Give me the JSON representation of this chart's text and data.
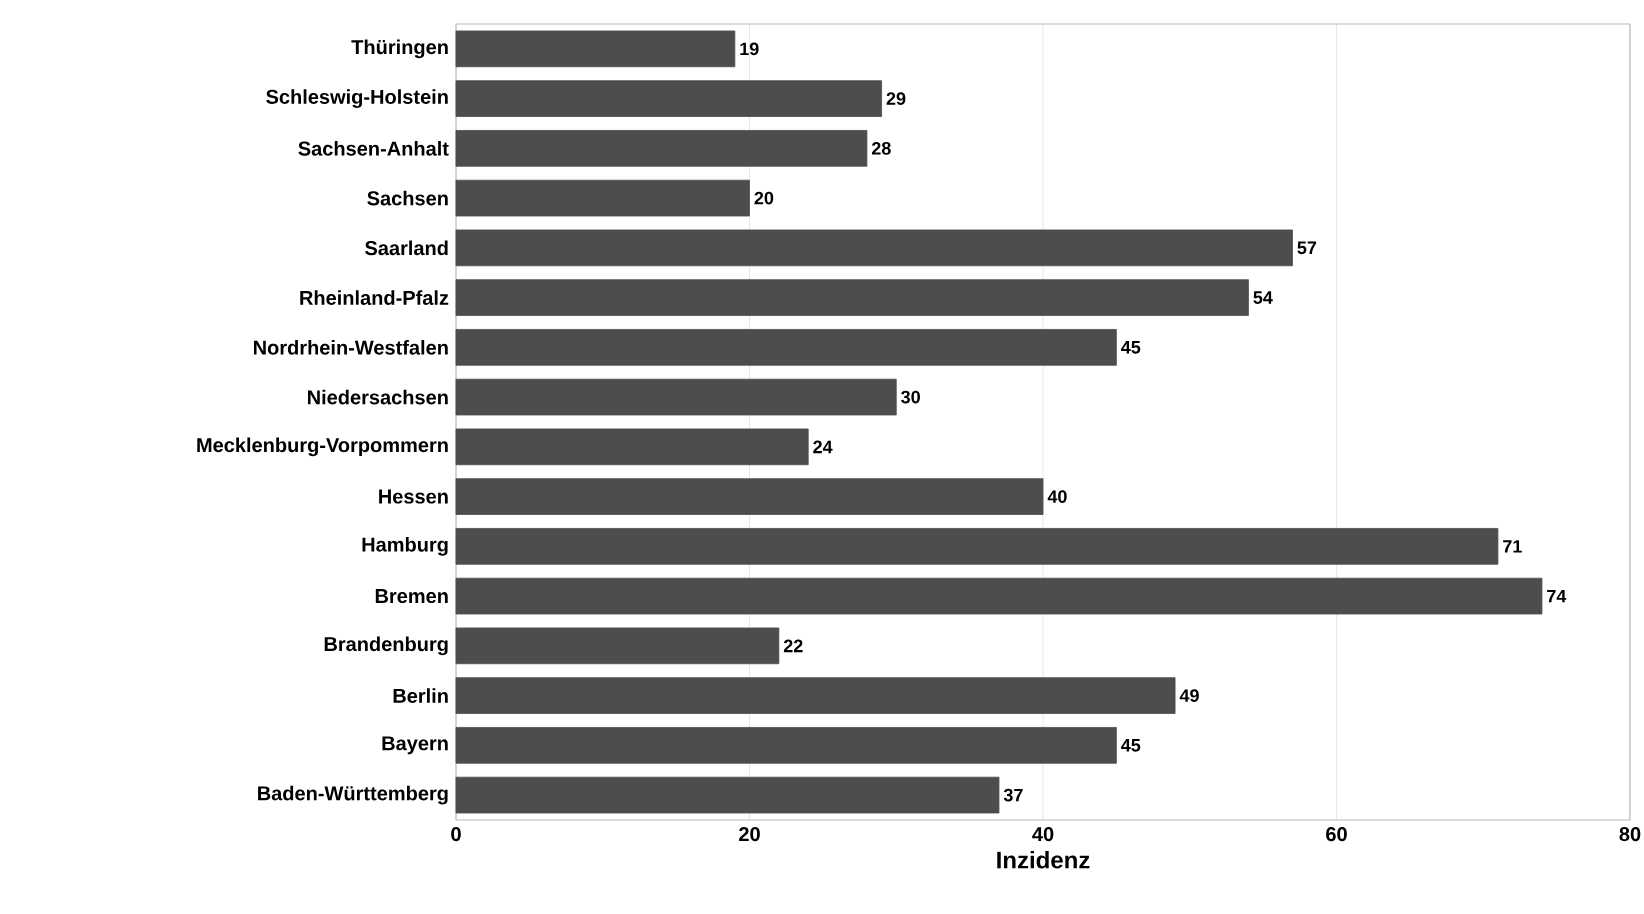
{
  "chart_data": {
    "type": "bar",
    "orientation": "horizontal",
    "xlabel": "Inzidenz",
    "categories": [
      "Thüringen",
      "Schleswig-Holstein",
      "Sachsen-Anhalt",
      "Sachsen",
      "Saarland",
      "Rheinland-Pfalz",
      "Nordrhein-Westfalen",
      "Niedersachsen",
      "Mecklenburg-Vorpommern",
      "Hessen",
      "Hamburg",
      "Bremen",
      "Brandenburg",
      "Berlin",
      "Bayern",
      "Baden-Württemberg"
    ],
    "values": [
      19,
      29,
      28,
      20,
      57,
      54,
      45,
      30,
      24,
      40,
      71,
      74,
      22,
      49,
      45,
      37
    ],
    "color": "#4d4d4d",
    "xlim": [
      0,
      80
    ],
    "xticks": [
      0,
      20,
      40,
      60,
      80
    ],
    "grid": "x",
    "data_labels": true
  }
}
